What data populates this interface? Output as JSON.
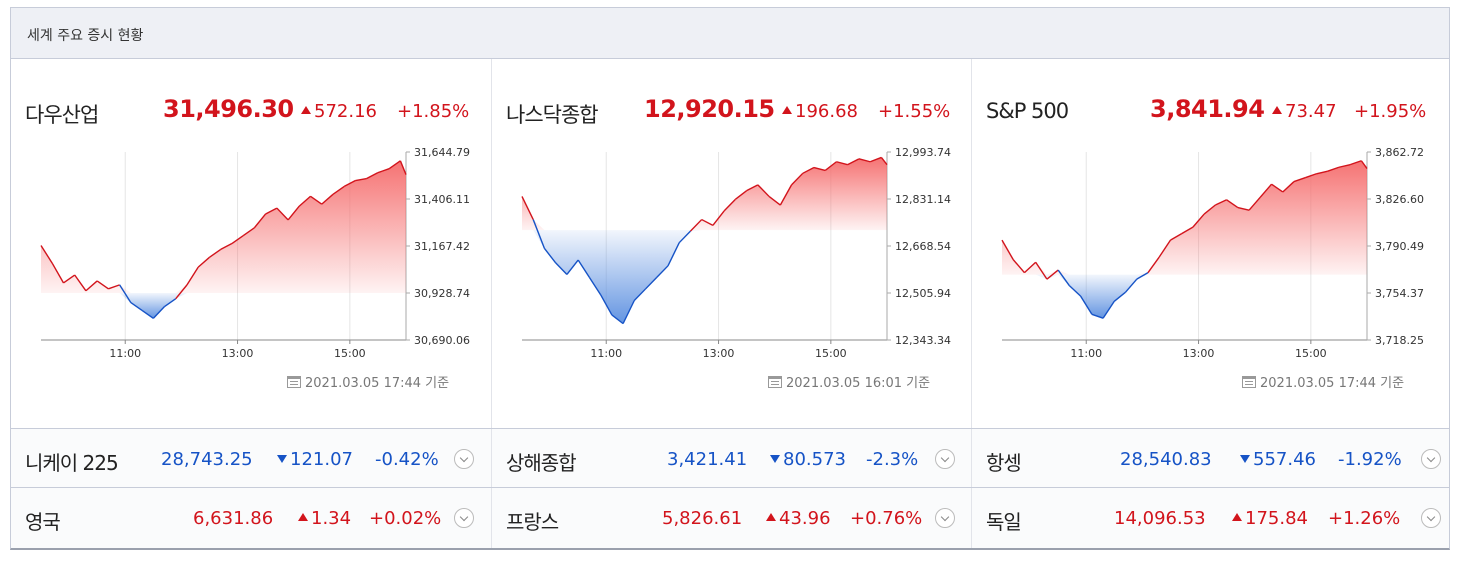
{
  "header": {
    "title": "세계 주요 증시 현황"
  },
  "colors": {
    "up": "#d2141c",
    "down": "#1653c6",
    "up_fill": "#f56b6b",
    "down_fill": "#5b8fe0"
  },
  "panels": [
    {
      "name": "다우산업",
      "value": "31,496.30",
      "change": "572.16",
      "pct": "+1.85%",
      "timestamp": "2021.03.05 17:44 기준"
    },
    {
      "name": "나스닥종합",
      "value": "12,920.15",
      "change": "196.68",
      "pct": "+1.55%",
      "timestamp": "2021.03.05 16:01 기준"
    },
    {
      "name": "S&P 500",
      "value": "3,841.94",
      "change": "73.47",
      "pct": "+1.95%",
      "timestamp": "2021.03.05 17:44 기준"
    }
  ],
  "rows": [
    [
      {
        "name": "니케이 225",
        "value": "28,743.25",
        "change": "121.07",
        "pct": "-0.42%",
        "dir": "down"
      },
      {
        "name": "상해종합",
        "value": "3,421.41",
        "change": "80.573",
        "pct": "-2.3%",
        "dir": "down"
      },
      {
        "name": "항셍",
        "value": "28,540.83",
        "change": "557.46",
        "pct": "-1.92%",
        "dir": "down"
      }
    ],
    [
      {
        "name": "영국",
        "value": "6,631.86",
        "change": "1.34",
        "pct": "+0.02%",
        "dir": "up"
      },
      {
        "name": "프랑스",
        "value": "5,826.61",
        "change": "43.96",
        "pct": "+0.76%",
        "dir": "up"
      },
      {
        "name": "독일",
        "value": "14,096.53",
        "change": "175.84",
        "pct": "+1.26%",
        "dir": "up"
      }
    ]
  ],
  "chart_data": [
    {
      "type": "area",
      "title": "다우산업",
      "y_ticks": [
        "31,644.79",
        "31,406.11",
        "31,167.42",
        "30,928.74",
        "30,690.06"
      ],
      "ylim": [
        30690.06,
        31644.79
      ],
      "x_ticks": [
        "11:00",
        "13:00",
        "15:00"
      ],
      "x_tick_hours": [
        11,
        13,
        15
      ],
      "xlim": [
        9.5,
        16.0
      ],
      "baseline": 30928.74,
      "x": [
        9.5,
        9.7,
        9.9,
        10.1,
        10.3,
        10.5,
        10.7,
        10.9,
        11.1,
        11.3,
        11.5,
        11.7,
        11.9,
        12.1,
        12.3,
        12.5,
        12.7,
        12.9,
        13.1,
        13.3,
        13.5,
        13.7,
        13.9,
        14.1,
        14.3,
        14.5,
        14.7,
        14.9,
        15.1,
        15.3,
        15.5,
        15.7,
        15.9,
        16.0
      ],
      "y": [
        31170,
        31080,
        30980,
        31020,
        30940,
        30990,
        30950,
        30970,
        30880,
        30840,
        30800,
        30860,
        30900,
        30970,
        31060,
        31110,
        31150,
        31180,
        31220,
        31260,
        31330,
        31360,
        31300,
        31370,
        31420,
        31380,
        31430,
        31470,
        31500,
        31510,
        31540,
        31560,
        31600,
        31530
      ]
    },
    {
      "type": "area",
      "title": "나스닥종합",
      "y_ticks": [
        "12,993.74",
        "12,831.14",
        "12,668.54",
        "12,505.94",
        "12,343.34"
      ],
      "ylim": [
        12343.34,
        12993.74
      ],
      "x_ticks": [
        "11:00",
        "13:00",
        "15:00"
      ],
      "x_tick_hours": [
        11,
        13,
        15
      ],
      "xlim": [
        9.5,
        16.0
      ],
      "baseline": 12723.47,
      "x": [
        9.5,
        9.7,
        9.9,
        10.1,
        10.3,
        10.5,
        10.7,
        10.9,
        11.1,
        11.3,
        11.5,
        11.7,
        11.9,
        12.1,
        12.3,
        12.5,
        12.7,
        12.9,
        13.1,
        13.3,
        13.5,
        13.7,
        13.9,
        14.1,
        14.3,
        14.5,
        14.7,
        14.9,
        15.1,
        15.3,
        15.5,
        15.7,
        15.9,
        16.0
      ],
      "y": [
        12840,
        12760,
        12660,
        12610,
        12570,
        12620,
        12560,
        12500,
        12430,
        12400,
        12480,
        12520,
        12560,
        12600,
        12680,
        12720,
        12760,
        12740,
        12790,
        12830,
        12860,
        12880,
        12840,
        12810,
        12880,
        12920,
        12940,
        12930,
        12960,
        12950,
        12970,
        12960,
        12975,
        12950
      ]
    },
    {
      "type": "area",
      "title": "S&P 500",
      "y_ticks": [
        "3,862.72",
        "3,826.60",
        "3,790.49",
        "3,754.37",
        "3,718.25"
      ],
      "ylim": [
        3718.25,
        3862.72
      ],
      "x_ticks": [
        "11:00",
        "13:00",
        "15:00"
      ],
      "x_tick_hours": [
        11,
        13,
        15
      ],
      "xlim": [
        9.5,
        16.0
      ],
      "baseline": 3768.47,
      "x": [
        9.5,
        9.7,
        9.9,
        10.1,
        10.3,
        10.5,
        10.7,
        10.9,
        11.1,
        11.3,
        11.5,
        11.7,
        11.9,
        12.1,
        12.3,
        12.5,
        12.7,
        12.9,
        13.1,
        13.3,
        13.5,
        13.7,
        13.9,
        14.1,
        14.3,
        14.5,
        14.7,
        14.9,
        15.1,
        15.3,
        15.5,
        15.7,
        15.9,
        16.0
      ],
      "y": [
        3795,
        3780,
        3770,
        3778,
        3765,
        3772,
        3760,
        3752,
        3738,
        3735,
        3748,
        3755,
        3765,
        3770,
        3782,
        3795,
        3800,
        3805,
        3815,
        3822,
        3826,
        3820,
        3818,
        3828,
        3838,
        3832,
        3840,
        3843,
        3846,
        3848,
        3851,
        3853,
        3856,
        3850
      ]
    }
  ]
}
